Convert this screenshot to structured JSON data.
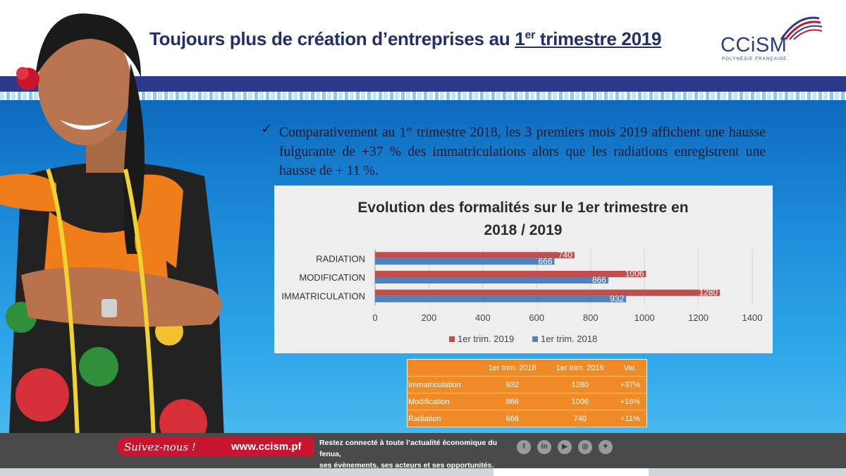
{
  "header": {
    "title_main": "Toujours plus de création d’entreprises au ",
    "title_u_pre": "1",
    "title_u_sup": "er",
    "title_u_post": " trimestre 2019",
    "logo_text": "CCiSM",
    "logo_sub": "POLYNÉSIE FRANÇAISE"
  },
  "bullet": {
    "check": "✓",
    "part1": "Comparativement au 1",
    "sup": "er",
    "part2": " trimestre 2018, les 3 premiers mois 2019 affichent une hausse fulgurante de +37 % des immatriculations alors que les radiations enregistrent  une hausse de + 11 %."
  },
  "chart_data": {
    "type": "bar",
    "orientation": "horizontal",
    "title_line1": "Evolution des formalités sur le 1er trimestre en",
    "title_line2": "2018 / 2019",
    "categories": [
      "RADIATION",
      "MODIFICATION",
      "IMMATRICULATION"
    ],
    "series": [
      {
        "name": "1er trim. 2019",
        "color": "#c0504d",
        "values": [
          740,
          1006,
          1280
        ]
      },
      {
        "name": "1er trim. 2018",
        "color": "#4f81bd",
        "values": [
          666,
          866,
          932
        ]
      }
    ],
    "xlim": [
      0,
      1400
    ],
    "ticks": [
      "0",
      "200",
      "400",
      "600",
      "800",
      "1000",
      "1200",
      "1400"
    ],
    "legend_position": "bottom",
    "grid": true
  },
  "table": {
    "headers": [
      "",
      "1er trim. 2018",
      "1er trim. 2019",
      "Var."
    ],
    "rows": [
      [
        "Immatriculation",
        "932",
        "1280",
        "+37%"
      ],
      [
        "Modification",
        "866",
        "1006",
        "+16%"
      ],
      [
        "Radiation",
        "666",
        "740",
        "+11%"
      ]
    ]
  },
  "footer": {
    "follow_script": "Suivez-nous !",
    "follow_url": "www.ccism.pf",
    "text_line1": "Restez connecté à toute l’actualité économique du fenua,",
    "text_line2": "ses évènements, ses acteurs et ses opportunités.",
    "social": [
      {
        "icon": "facebook-icon",
        "glyph": "f"
      },
      {
        "icon": "linkedin-icon",
        "glyph": "in"
      },
      {
        "icon": "youtube-icon",
        "glyph": "▶"
      },
      {
        "icon": "instagram-icon",
        "glyph": "◎"
      },
      {
        "icon": "twitter-icon",
        "glyph": "✦"
      }
    ]
  },
  "colors": {
    "title": "#232f6b",
    "band": "#2b3a8c",
    "table": "#ef8a27",
    "follow": "#c8152e"
  }
}
